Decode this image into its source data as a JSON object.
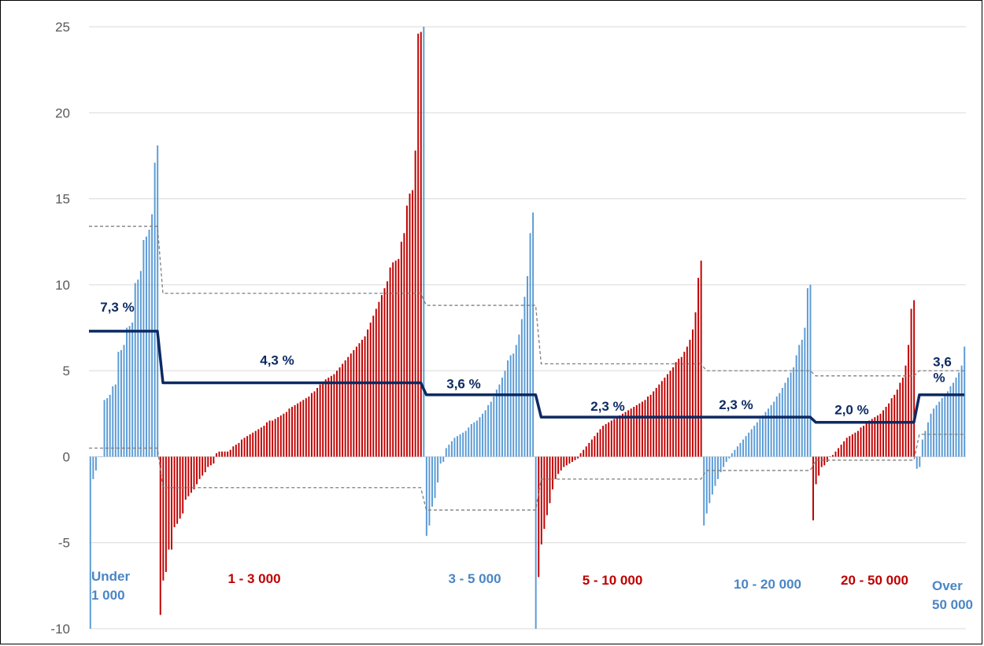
{
  "chart_data": {
    "type": "bar",
    "title": "",
    "xlabel": "",
    "ylabel": "",
    "ylim": [
      -10,
      25
    ],
    "yticks": [
      25,
      20,
      15,
      10,
      5,
      0,
      -5,
      -10
    ],
    "grid": true,
    "legend": "none",
    "colors": {
      "blue": "#5b9bd5",
      "red": "#c00000",
      "average": "#0d2a63",
      "band": "#7f7f7f"
    },
    "groups": [
      {
        "label": "Under 1 000",
        "color": "blue",
        "average": 7.3,
        "average_label": "7,3 %",
        "band_upper": 13.4,
        "band_lower": 0.5,
        "values": [
          -10,
          -1.3,
          -0.8,
          0,
          0,
          3.3,
          3.4,
          3.6,
          4.1,
          4.2,
          6.1,
          6.2,
          6.5,
          7.5,
          7.6,
          7.8,
          10.1,
          10.3,
          10.8,
          12.6,
          12.8,
          13.2,
          14.1,
          17.1,
          18.1
        ]
      },
      {
        "label": "1 - 3 000",
        "color": "red",
        "average": 4.3,
        "average_label": "4,3 %",
        "band_upper": 9.5,
        "band_lower": -1.8,
        "values": [
          -9.2,
          -7.2,
          -6.7,
          -5.4,
          -5.4,
          -4.1,
          -3.9,
          -3.6,
          -3.3,
          -2.5,
          -2.3,
          -2.1,
          -1.9,
          -1.6,
          -1.3,
          -1.1,
          -0.9,
          -0.6,
          -0.5,
          -0.4,
          0.2,
          0.3,
          0.3,
          0.3,
          0.3,
          0.4,
          0.6,
          0.7,
          0.8,
          1,
          1.1,
          1.2,
          1.3,
          1.4,
          1.5,
          1.6,
          1.7,
          1.8,
          2,
          2.1,
          2.1,
          2.2,
          2.3,
          2.4,
          2.5,
          2.6,
          2.8,
          2.9,
          3,
          3.1,
          3.2,
          3.3,
          3.4,
          3.5,
          3.7,
          3.8,
          4,
          4.2,
          4.3,
          4.5,
          4.6,
          4.7,
          4.8,
          5,
          5.2,
          5.4,
          5.6,
          5.8,
          6,
          6.2,
          6.4,
          6.6,
          6.8,
          7,
          7.4,
          7.8,
          8.2,
          8.6,
          9,
          9.4,
          9.8,
          10.2,
          11,
          11.3,
          11.4,
          11.5,
          12.5,
          13,
          14.6,
          15.3,
          15.5,
          17.8,
          24.6,
          24.7
        ]
      },
      {
        "label": "3 - 5 000",
        "color": "blue",
        "average": 3.6,
        "average_label": "3,6 %",
        "band_upper": 8.8,
        "band_lower": -3.1,
        "values": [
          25,
          -4.6,
          -4,
          -2.9,
          -2.4,
          -1.5,
          -0.4,
          -0.3,
          0.5,
          0.7,
          0.9,
          1.1,
          1.2,
          1.3,
          1.4,
          1.5,
          1.7,
          1.9,
          2,
          2.1,
          2.3,
          2.5,
          2.7,
          3,
          3.2,
          3.5,
          3.9,
          4.2,
          4.6,
          5,
          5.6,
          5.9,
          6,
          6.5,
          7.1,
          8,
          9.3,
          10.5,
          13,
          14.2,
          -10
        ]
      },
      {
        "label": "5 - 10 000",
        "color": "red",
        "average": 2.3,
        "average_label": "2,3 %",
        "band_upper": 5.4,
        "band_lower": -1.3,
        "values": [
          -7,
          -5.1,
          -4.2,
          -3.4,
          -2.7,
          -1.9,
          -1.3,
          -1,
          -0.8,
          -0.6,
          -0.5,
          -0.4,
          -0.3,
          -0.2,
          -0.1,
          0.2,
          0.4,
          0.6,
          0.8,
          1,
          1.2,
          1.4,
          1.6,
          1.8,
          1.9,
          2,
          2.1,
          2.2,
          2.3,
          2.4,
          2.5,
          2.6,
          2.7,
          2.8,
          2.9,
          3,
          3.1,
          3.2,
          3.3,
          3.5,
          3.6,
          3.8,
          4,
          4.2,
          4.4,
          4.6,
          4.8,
          5,
          5.2,
          5.5,
          5.7,
          5.8,
          6.1,
          6.4,
          6.8,
          7.4,
          8.4,
          10.4,
          11.4
        ]
      },
      {
        "label": "10 - 20 000",
        "color": "blue",
        "average": 2.3,
        "average_label": "2,3 %",
        "band_upper": 5,
        "band_lower": -0.8,
        "values": [
          -4,
          -3.3,
          -2.7,
          -2.2,
          -1.7,
          -1.3,
          -0.9,
          -0.6,
          -0.3,
          -0.1,
          0.2,
          0.4,
          0.6,
          0.8,
          1,
          1.2,
          1.4,
          1.6,
          1.8,
          2,
          2.2,
          2.4,
          2.6,
          2.8,
          3,
          3.2,
          3.5,
          3.7,
          4,
          4.3,
          4.6,
          4.9,
          5.2,
          5.9,
          6.5,
          6.8,
          7.5,
          9.8,
          10
        ]
      },
      {
        "label": "20 - 50 000",
        "color": "red",
        "average": 2,
        "average_label": "2,0 %",
        "band_upper": 4.7,
        "band_lower": -0.2,
        "values": [
          -3.7,
          -1.6,
          -1.1,
          -0.6,
          -0.5,
          -0.3,
          0,
          0.1,
          0.3,
          0.5,
          0.7,
          0.9,
          1.1,
          1.2,
          1.3,
          1.4,
          1.5,
          1.7,
          1.8,
          2,
          2.1,
          2.2,
          2.3,
          2.4,
          2.5,
          2.7,
          2.9,
          3.1,
          3.4,
          3.6,
          3.9,
          4.3,
          4.6,
          5.3,
          6.5,
          8.6,
          9.1
        ]
      },
      {
        "label": "Over 50 000",
        "color": "blue",
        "average": 3.6,
        "average_label": "3,6 %",
        "band_upper": 5,
        "band_lower": 1.3,
        "values": [
          -0.7,
          -0.6,
          1,
          1.5,
          2,
          2.5,
          2.8,
          3,
          3.2,
          3.4,
          3.6,
          3.8,
          4.1,
          4.3,
          4.6,
          4.9,
          5.3,
          6.4
        ]
      }
    ]
  }
}
